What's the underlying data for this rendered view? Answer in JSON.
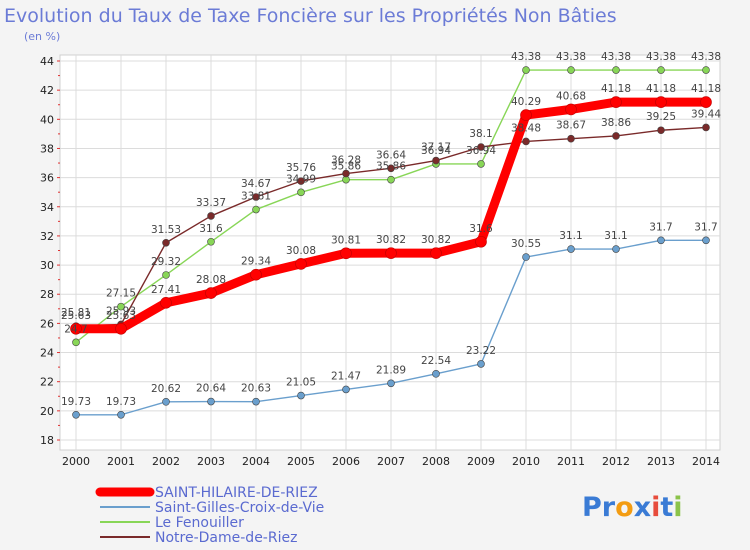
{
  "chart_data": {
    "type": "line",
    "title": "Evolution du Taux de Taxe Foncière sur les Propriétés Non Bâties",
    "subtitle": "(en %)",
    "xlabel": "",
    "ylabel": "(en %)",
    "ylim": [
      18,
      44
    ],
    "yticks": [
      18,
      20,
      22,
      24,
      26,
      28,
      30,
      32,
      34,
      36,
      38,
      40,
      42,
      44
    ],
    "grid": true,
    "legend_position": "bottom-left",
    "categories": [
      "2000",
      "2001",
      "2002",
      "2003",
      "2004",
      "2005",
      "2006",
      "2007",
      "2008",
      "2009",
      "2010",
      "2011",
      "2012",
      "2013",
      "2014"
    ],
    "series": [
      {
        "name": "SAINT-HILAIRE-DE-RIEZ",
        "color": "#ff0000",
        "values": [
          25.63,
          25.63,
          27.41,
          28.08,
          29.34,
          30.08,
          30.81,
          30.82,
          30.82,
          31.6,
          40.29,
          40.68,
          41.18,
          41.18,
          41.18
        ],
        "labels": [
          "25.63",
          "25.63",
          "27.41",
          "28.08",
          "29.34",
          "30.08",
          "30.81",
          "30.82",
          "30.82",
          "31.6",
          "40.29",
          "40.68",
          "41.18",
          "41.18",
          "41.18"
        ]
      },
      {
        "name": "Saint-Gilles-Croix-de-Vie",
        "color": "#6a9fcd",
        "values": [
          19.73,
          19.73,
          20.62,
          20.64,
          20.63,
          21.05,
          21.47,
          21.89,
          22.54,
          23.22,
          30.55,
          31.1,
          31.1,
          31.7,
          31.7
        ],
        "labels": [
          "19.73",
          "19.73",
          "20.62",
          "20.64",
          "20.63",
          "21.05",
          "21.47",
          "21.89",
          "22.54",
          "23.22",
          "30.55",
          "31.1",
          "31.1",
          "31.7",
          "31.7"
        ]
      },
      {
        "name": "Le Fenouiller",
        "color": "#88d657",
        "values": [
          24.7,
          27.15,
          29.32,
          31.6,
          33.81,
          34.99,
          35.86,
          35.86,
          36.94,
          36.94,
          43.38,
          43.38,
          43.38,
          43.38,
          43.38
        ],
        "labels": [
          "24.7",
          "27.15",
          "29.32",
          "31.6",
          "33.81",
          "34.99",
          "35.86",
          "35.86",
          "36.94",
          "36.94",
          "43.38",
          "43.38",
          "43.38",
          "43.38",
          "43.38"
        ]
      },
      {
        "name": "Notre-Dame-de-Riez",
        "color": "#7a2a2a",
        "values": [
          25.81,
          25.93,
          31.53,
          33.37,
          34.67,
          35.76,
          36.28,
          36.64,
          37.17,
          38.1,
          38.48,
          38.67,
          38.86,
          39.25,
          39.44
        ],
        "labels": [
          "25.81",
          "25.93",
          "31.53",
          "33.37",
          "34.67",
          "35.76",
          "36.28",
          "36.64",
          "37.17",
          "38.1",
          "38.48",
          "38.67",
          "38.86",
          "39.25",
          "39.44"
        ]
      }
    ]
  },
  "brand": {
    "name": "Proxiti",
    "letters": [
      "P",
      "r",
      "o",
      "x",
      "i",
      "t",
      "i"
    ],
    "letter_colors": [
      "#3a7bd5",
      "#3a7bd5",
      "#f39c12",
      "#3a7bd5",
      "#e74c3c",
      "#3a7bd5",
      "#8bc34a"
    ]
  }
}
